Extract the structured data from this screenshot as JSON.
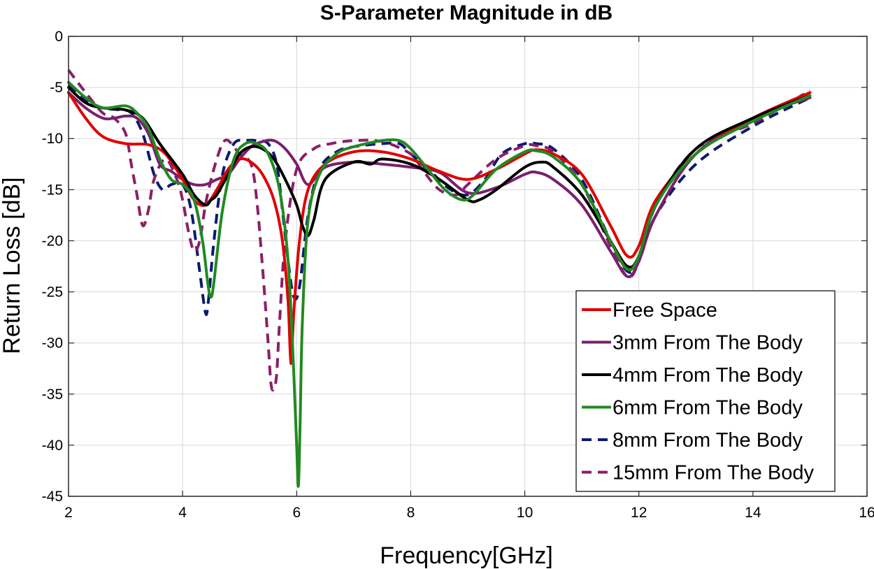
{
  "chart_data": {
    "type": "line",
    "title": "S-Parameter Magnitude in dB",
    "xlabel": "Frequency[GHz]",
    "ylabel": "Return Loss [dB]",
    "xlim": [
      2,
      16
    ],
    "ylim": [
      -45,
      0
    ],
    "xticks": [
      2,
      4,
      6,
      8,
      10,
      12,
      14,
      16
    ],
    "yticks": [
      0,
      -5,
      -10,
      -15,
      -20,
      -25,
      -30,
      -35,
      -40,
      -45
    ],
    "grid": true,
    "legend_position": "bottom-right",
    "series": [
      {
        "name": "Free Space",
        "color": "#e00000",
        "dash": "solid",
        "x": [
          2.0,
          2.3,
          2.6,
          3.0,
          3.4,
          3.7,
          4.0,
          4.2,
          4.4,
          4.6,
          4.8,
          5.0,
          5.2,
          5.4,
          5.6,
          5.75,
          5.85,
          5.9,
          5.95,
          6.05,
          6.2,
          6.5,
          7.0,
          7.5,
          8.0,
          8.5,
          9.0,
          9.5,
          10.0,
          10.2,
          10.5,
          11.0,
          11.5,
          11.8,
          12.0,
          12.3,
          13.0,
          14.0,
          15.0
        ],
        "y": [
          -5.5,
          -8.0,
          -9.8,
          -10.5,
          -10.6,
          -11.5,
          -14.0,
          -16.0,
          -16.5,
          -15.0,
          -13.0,
          -12.0,
          -12.3,
          -13.5,
          -16.0,
          -20.0,
          -26.0,
          -32.0,
          -27.0,
          -20.0,
          -15.0,
          -12.5,
          -11.3,
          -11.3,
          -12.0,
          -13.2,
          -14.0,
          -13.0,
          -11.5,
          -11.1,
          -11.5,
          -13.5,
          -18.5,
          -21.5,
          -20.5,
          -16.0,
          -11.5,
          -8.0,
          -5.5
        ]
      },
      {
        "name": "3mm From The Body",
        "color": "#7a1f6e",
        "dash": "solid",
        "x": [
          2.0,
          2.3,
          2.6,
          2.8,
          3.0,
          3.2,
          3.4,
          3.6,
          3.8,
          4.0,
          4.2,
          4.4,
          4.6,
          4.8,
          5.0,
          5.2,
          5.4,
          5.6,
          5.8,
          6.0,
          6.2,
          6.5,
          7.0,
          7.5,
          8.0,
          8.5,
          9.0,
          9.5,
          10.0,
          10.2,
          10.5,
          11.0,
          11.5,
          11.8,
          12.0,
          12.3,
          13.0,
          14.0,
          15.0
        ],
        "y": [
          -5.5,
          -7.0,
          -8.0,
          -8.0,
          -7.8,
          -8.0,
          -9.5,
          -12.5,
          -13.2,
          -14.0,
          -14.5,
          -14.5,
          -14.0,
          -13.5,
          -12.0,
          -10.8,
          -10.3,
          -10.2,
          -11.0,
          -12.5,
          -14.5,
          -12.8,
          -12.3,
          -12.5,
          -12.8,
          -13.3,
          -15.3,
          -14.8,
          -13.5,
          -13.3,
          -14.0,
          -16.5,
          -21.0,
          -23.5,
          -22.0,
          -17.5,
          -11.5,
          -8.0,
          -6.0
        ]
      },
      {
        "name": "4mm From The Body",
        "color": "#000000",
        "dash": "solid",
        "x": [
          2.0,
          2.3,
          2.6,
          3.0,
          3.3,
          3.6,
          4.0,
          4.2,
          4.4,
          4.5,
          4.6,
          4.8,
          5.0,
          5.2,
          5.4,
          5.6,
          5.8,
          6.0,
          6.1,
          6.2,
          6.3,
          6.5,
          7.0,
          7.3,
          7.5,
          8.0,
          8.5,
          9.0,
          9.2,
          9.5,
          10.0,
          10.3,
          10.5,
          11.0,
          11.5,
          11.8,
          12.0,
          12.3,
          13.0,
          14.0,
          15.0
        ],
        "y": [
          -5.0,
          -6.5,
          -7.0,
          -7.2,
          -8.0,
          -10.5,
          -13.5,
          -15.5,
          -16.5,
          -16.0,
          -15.5,
          -13.5,
          -11.5,
          -10.8,
          -11.0,
          -12.0,
          -14.0,
          -16.5,
          -18.5,
          -19.5,
          -18.0,
          -14.0,
          -12.3,
          -12.5,
          -12.0,
          -12.5,
          -14.0,
          -16.0,
          -16.0,
          -15.0,
          -12.8,
          -12.3,
          -12.8,
          -15.5,
          -20.0,
          -22.5,
          -21.5,
          -16.5,
          -11.0,
          -8.0,
          -5.8
        ]
      },
      {
        "name": "6mm From The Body",
        "color": "#218a21",
        "dash": "solid",
        "x": [
          2.0,
          2.3,
          2.6,
          3.0,
          3.2,
          3.4,
          3.6,
          3.8,
          4.0,
          4.2,
          4.35,
          4.45,
          4.5,
          4.55,
          4.7,
          4.9,
          5.1,
          5.3,
          5.5,
          5.7,
          5.85,
          5.95,
          6.0,
          6.03,
          6.06,
          6.1,
          6.2,
          6.4,
          6.7,
          7.0,
          7.5,
          7.8,
          8.0,
          8.3,
          8.6,
          8.9,
          9.1,
          9.5,
          10.0,
          10.2,
          10.5,
          11.0,
          11.5,
          11.8,
          12.0,
          12.3,
          13.0,
          14.0,
          15.0
        ],
        "y": [
          -4.5,
          -6.0,
          -7.0,
          -6.8,
          -7.5,
          -9.0,
          -12.0,
          -14.0,
          -14.5,
          -16.0,
          -20.0,
          -24.5,
          -25.5,
          -24.0,
          -17.0,
          -12.0,
          -10.5,
          -10.5,
          -11.5,
          -15.0,
          -22.0,
          -33.0,
          -40.0,
          -44.0,
          -38.0,
          -28.0,
          -18.0,
          -13.5,
          -11.5,
          -10.8,
          -10.2,
          -10.2,
          -11.0,
          -13.0,
          -15.0,
          -16.0,
          -15.5,
          -13.0,
          -11.3,
          -11.2,
          -11.8,
          -14.5,
          -20.0,
          -22.8,
          -21.5,
          -16.5,
          -11.5,
          -8.3,
          -5.8
        ]
      },
      {
        "name": "8mm From The Body",
        "color": "#0c1a70",
        "dash": "dashed",
        "x": [
          2.0,
          2.3,
          2.6,
          2.9,
          3.1,
          3.3,
          3.5,
          3.65,
          3.8,
          4.0,
          4.15,
          4.3,
          4.4,
          4.45,
          4.55,
          4.7,
          4.9,
          5.1,
          5.3,
          5.5,
          5.65,
          5.75,
          5.85,
          5.95,
          6.05,
          6.2,
          6.4,
          6.7,
          7.0,
          7.5,
          7.8,
          8.0,
          8.4,
          8.7,
          9.0,
          9.3,
          9.6,
          10.0,
          10.2,
          10.5,
          11.0,
          11.5,
          11.8,
          12.0,
          12.3,
          13.0,
          14.0,
          15.0
        ],
        "y": [
          -4.8,
          -6.2,
          -7.0,
          -7.2,
          -7.5,
          -9.5,
          -13.5,
          -15.0,
          -14.5,
          -14.5,
          -17.0,
          -23.0,
          -27.0,
          -26.0,
          -20.0,
          -13.5,
          -10.5,
          -10.2,
          -10.2,
          -10.5,
          -12.5,
          -17.0,
          -22.0,
          -25.5,
          -24.5,
          -17.5,
          -13.0,
          -11.3,
          -10.8,
          -10.5,
          -10.5,
          -11.5,
          -13.5,
          -15.0,
          -15.5,
          -14.0,
          -11.5,
          -10.5,
          -10.5,
          -11.0,
          -14.0,
          -20.0,
          -23.0,
          -22.0,
          -17.5,
          -12.5,
          -8.8,
          -6.0
        ]
      },
      {
        "name": "15mm From The Body",
        "color": "#8a1f68",
        "dash": "dashed",
        "x": [
          2.0,
          2.3,
          2.6,
          2.8,
          3.0,
          3.1,
          3.2,
          3.3,
          3.4,
          3.5,
          3.7,
          3.9,
          4.0,
          4.1,
          4.2,
          4.3,
          4.4,
          4.5,
          4.6,
          4.7,
          4.8,
          5.0,
          5.2,
          5.3,
          5.4,
          5.5,
          5.55,
          5.6,
          5.65,
          5.7,
          5.8,
          6.0,
          6.3,
          6.6,
          7.0,
          7.5,
          8.0,
          8.2,
          8.5,
          8.8,
          9.0,
          9.5,
          10.0,
          10.2,
          10.5,
          11.0,
          11.5,
          11.8,
          12.0,
          12.3,
          13.0,
          14.0,
          15.0
        ],
        "y": [
          -3.3,
          -5.5,
          -7.5,
          -8.0,
          -9.5,
          -12.5,
          -15.5,
          -18.5,
          -17.0,
          -14.0,
          -12.0,
          -14.0,
          -16.0,
          -19.0,
          -21.0,
          -20.0,
          -16.5,
          -14.0,
          -12.0,
          -10.5,
          -10.2,
          -11.5,
          -12.5,
          -16.0,
          -22.5,
          -30.0,
          -34.0,
          -34.5,
          -33.0,
          -28.0,
          -20.0,
          -13.0,
          -11.0,
          -10.5,
          -10.2,
          -10.3,
          -11.5,
          -13.0,
          -15.0,
          -15.5,
          -14.5,
          -12.0,
          -10.7,
          -10.7,
          -11.3,
          -14.5,
          -20.5,
          -23.5,
          -22.0,
          -16.5,
          -11.0,
          -8.5,
          -5.3
        ]
      }
    ]
  }
}
